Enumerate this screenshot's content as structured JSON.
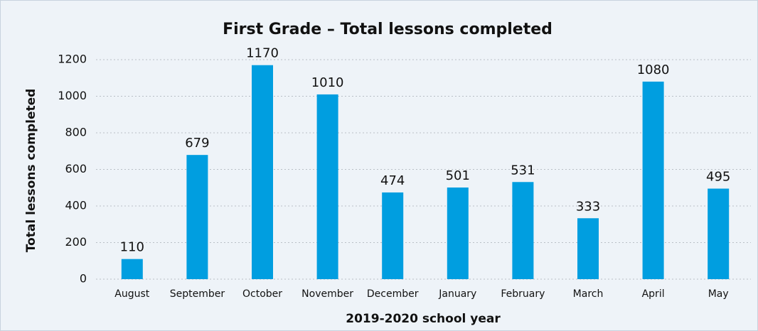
{
  "chart_data": {
    "type": "bar",
    "title": "First Grade – Total lessons completed",
    "xlabel": "2019-2020 school year",
    "ylabel": "Total lessons completed",
    "categories": [
      "August",
      "September",
      "October",
      "November",
      "December",
      "January",
      "February",
      "March",
      "April",
      "May"
    ],
    "values": [
      110,
      679,
      1170,
      1010,
      474,
      501,
      531,
      333,
      1080,
      495
    ],
    "color": "#009ee0",
    "ylim": [
      0,
      1200
    ],
    "yticks": [
      0,
      200,
      400,
      600,
      800,
      1000,
      1200
    ],
    "grid": true
  }
}
